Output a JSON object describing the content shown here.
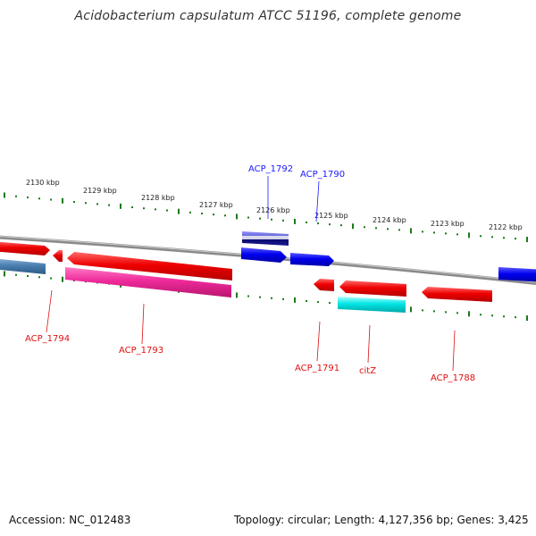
{
  "title": "Acidobacterium capsulatum ATCC 51196, complete genome",
  "accession": "Accession: NC_012483",
  "topology": "Topology: circular; Length: 4,127,356 bp; Genes: 3,425",
  "ticks": [
    "2130 kbp",
    "2129 kbp",
    "2128 kbp",
    "2127 kbp",
    "2126 kbp",
    "2125 kbp",
    "2124 kbp",
    "2123 kbp",
    "2122 kbp"
  ],
  "labels_top": [
    "ACP_1792",
    "ACP_1790"
  ],
  "labels_bottom": [
    "ACP_1794",
    "ACP_1793",
    "ACP_1791",
    "citZ",
    "ACP_1788"
  ],
  "colors": {
    "forward": "#0000ee",
    "reverse": "#ee0000",
    "pink": "#ee2a9a",
    "cyan": "#00e5e5",
    "steel": "#4a7fb0",
    "backbone": "#888888",
    "tick": "#1a7a1a"
  }
}
